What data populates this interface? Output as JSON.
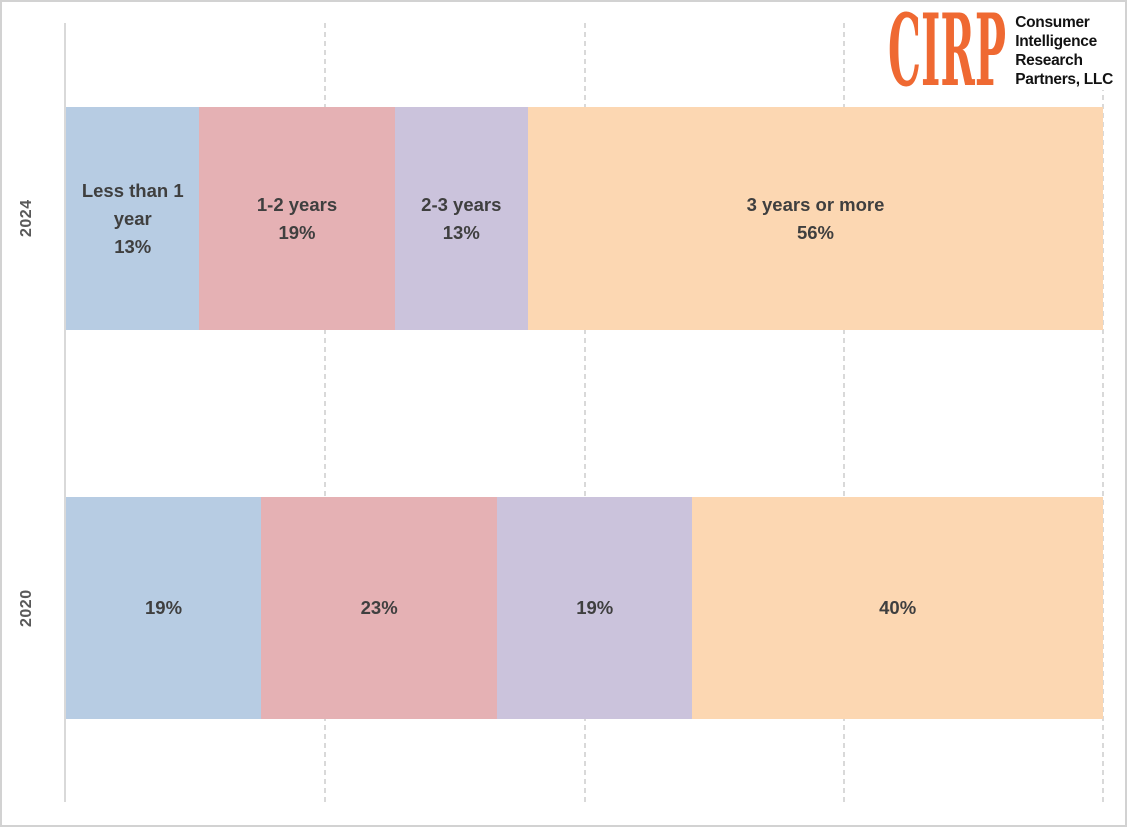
{
  "logo": {
    "brand": "CIRP",
    "brand_color": "#ef6932",
    "lines": [
      "Consumer",
      "Intelligence",
      "Research",
      "Partners, LLC"
    ]
  },
  "chart_data": {
    "type": "bar",
    "orientation": "horizontal",
    "stacked": "100%",
    "title": "",
    "xlabel": "",
    "ylabel": "",
    "categories": [
      "2024",
      "2020"
    ],
    "series": [
      {
        "name": "Less than 1 year",
        "color": "#b7cce3",
        "values": [
          13,
          19
        ]
      },
      {
        "name": "1-2 years",
        "color": "#e5b1b4",
        "values": [
          19,
          23
        ]
      },
      {
        "name": "2-3 years",
        "color": "#cbc3dc",
        "values": [
          13,
          19
        ]
      },
      {
        "name": "3 years or more",
        "color": "#fcd7b2",
        "values": [
          56,
          40
        ]
      }
    ],
    "data_labels": {
      "mode_by_row": [
        "name_and_percent",
        "percent_only"
      ],
      "percent_suffix": "%",
      "label_color": "#3f3f3f"
    },
    "axis": {
      "xlim": [
        0,
        100
      ],
      "gridline_positions_pct": [
        25,
        50,
        75,
        100
      ],
      "gridline_style": "dashed",
      "gridline_color": "#d9d9d9",
      "axis_line_color": "#d9d9d9",
      "category_label_color": "#595959",
      "legend": "none"
    }
  }
}
